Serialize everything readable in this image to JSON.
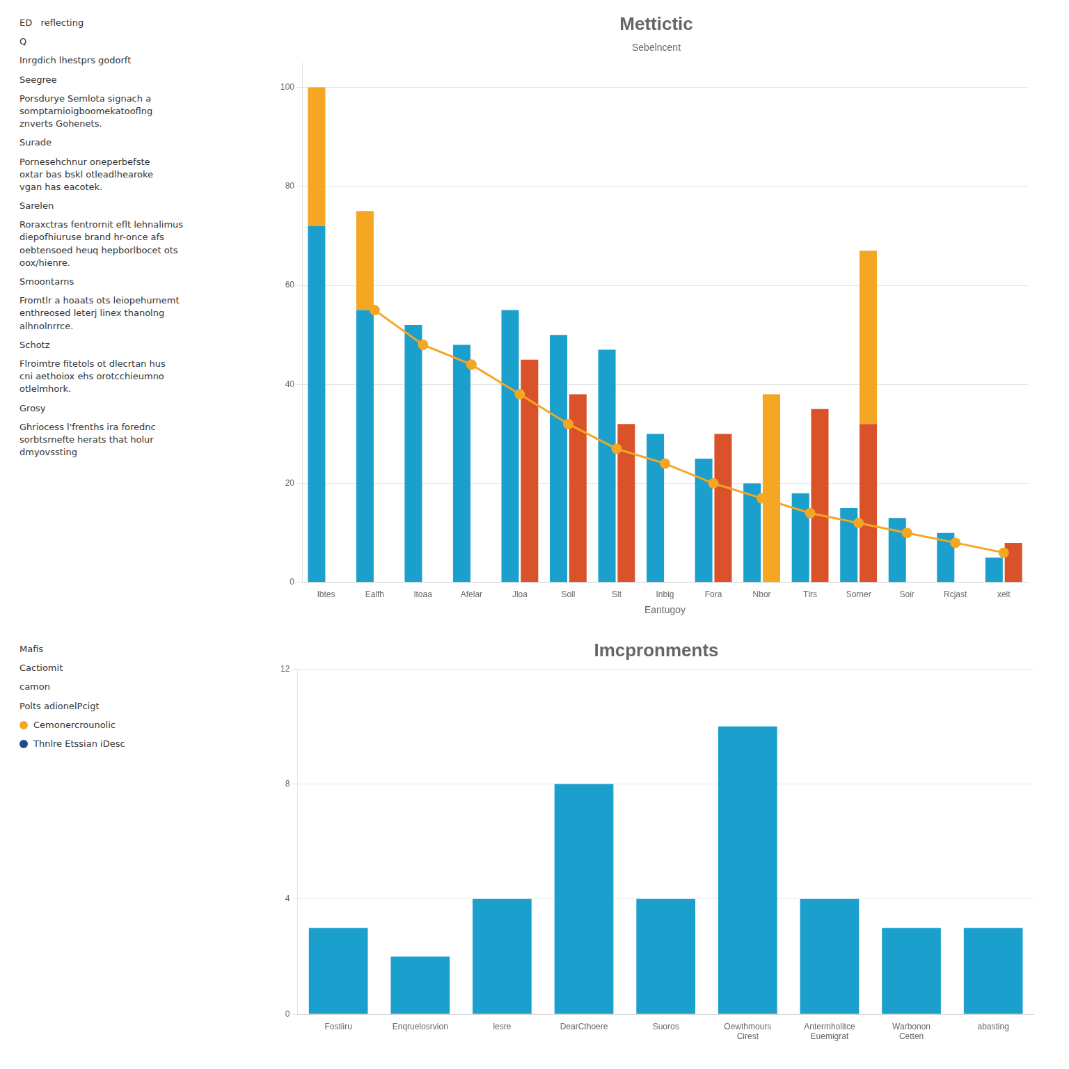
{
  "chart_data": [
    {
      "type": "bar",
      "title": "Mettictic",
      "subtitle": "Sebelncent",
      "xlabel": "Eantugoy",
      "categories": [
        "lbtes",
        "Ealfh",
        "ltoaa",
        "Afelar",
        "Jloa",
        "Soll",
        "Slt",
        "Inbig",
        "Fora",
        "Nbor",
        "Tlrs",
        "Sorner",
        "Soir",
        "Rcjast",
        "xelt"
      ],
      "series": [
        {
          "type": "bar",
          "color": "#1B9FCC",
          "values": [
            72,
            55,
            52,
            48,
            55,
            50,
            47,
            30,
            25,
            20,
            18,
            15,
            13,
            10,
            5
          ]
        },
        {
          "type": "bar",
          "color": "#F5A623",
          "stacked": true,
          "values": [
            28,
            20,
            0,
            0,
            0,
            0,
            0,
            0,
            0,
            0,
            0,
            0,
            0,
            0,
            0
          ]
        },
        {
          "type": "bar",
          "color": "#D9522A",
          "values": [
            0,
            0,
            0,
            0,
            45,
            38,
            32,
            0,
            30,
            0,
            35,
            32,
            0,
            0,
            8
          ]
        },
        {
          "type": "bar",
          "color": "#F5A623",
          "stacked": true,
          "values": [
            0,
            0,
            0,
            0,
            0,
            0,
            0,
            0,
            0,
            38,
            0,
            35,
            0,
            0,
            0
          ]
        },
        {
          "type": "line",
          "color": "#F5A623",
          "marker": "circle",
          "values": [
            null,
            55,
            48,
            44,
            38,
            32,
            27,
            24,
            20,
            17,
            14,
            12,
            10,
            8,
            6
          ]
        }
      ],
      "ylim": [
        0,
        105
      ],
      "yticks": [
        0,
        20,
        40,
        60,
        80,
        100
      ],
      "grid": true,
      "stacked": true,
      "annotations": [
        {
          "text": "ED   reflecting"
        },
        {
          "text": "Q"
        },
        {
          "text": "Inrgdich lhestprs godorft"
        },
        {
          "text": "Seegree"
        },
        {
          "text": "Porsdurye Semlota signach a\nsomptarnioigboomekatooflng\nznverts Gohenets."
        },
        {
          "text": "Surade"
        },
        {
          "text": "Pornesehchnur oneperbefste\noxtar bas bskl otleadlhearoke\nvgan has eacotek."
        },
        {
          "text": "Sarelen"
        },
        {
          "text": "Roraxctras fentrornit eflt lehnalimus\ndiepofhiuruse brand hr-once afs\noebtensoed heuq hepborlbocet ots\noox/hienre."
        },
        {
          "text": "Smoontarns"
        },
        {
          "text": "Fromtlr a hoaats ots leiopehurnemt\nenthreosed leterj linex thanolng\nalhnolnrrce."
        },
        {
          "text": "Schotz"
        },
        {
          "text": "Flroimtre fitetols ot dlecrtan hus\ncni aethoiox ehs orotcchieumno\notlelmhork."
        },
        {
          "text": "Grosy"
        },
        {
          "text": "Ghriocess l'frenths ira forednc\nsorbtsrnefte herats that holur\ndmyovssting"
        }
      ]
    },
    {
      "type": "bar",
      "title": "Imcpronments",
      "categories": [
        "Fostiiru",
        "Enqruelosrvion",
        "lesre",
        "DearCthoere",
        "Suoros",
        "Oewthmours\nCirest",
        "Antermholitce\nEuemigrat",
        "Warbonon\nCetten",
        "abasting"
      ],
      "values": [
        3,
        2,
        4,
        8,
        4,
        10,
        4,
        3,
        3
      ],
      "color": "#1B9FCC",
      "ylim": [
        0,
        12
      ],
      "yticks": [
        0,
        4,
        8,
        12
      ],
      "grid": true,
      "annotations": [
        {
          "text": "Mafis"
        },
        {
          "text": "Cactiomit"
        },
        {
          "text": "camon"
        },
        {
          "text": "Polts adionelPcigt"
        },
        {
          "text": "Cemonercrounolic",
          "color": "#F5A623"
        },
        {
          "text": "Thnlre Etssian iDesc",
          "color": "#1B4F8A"
        }
      ]
    }
  ]
}
